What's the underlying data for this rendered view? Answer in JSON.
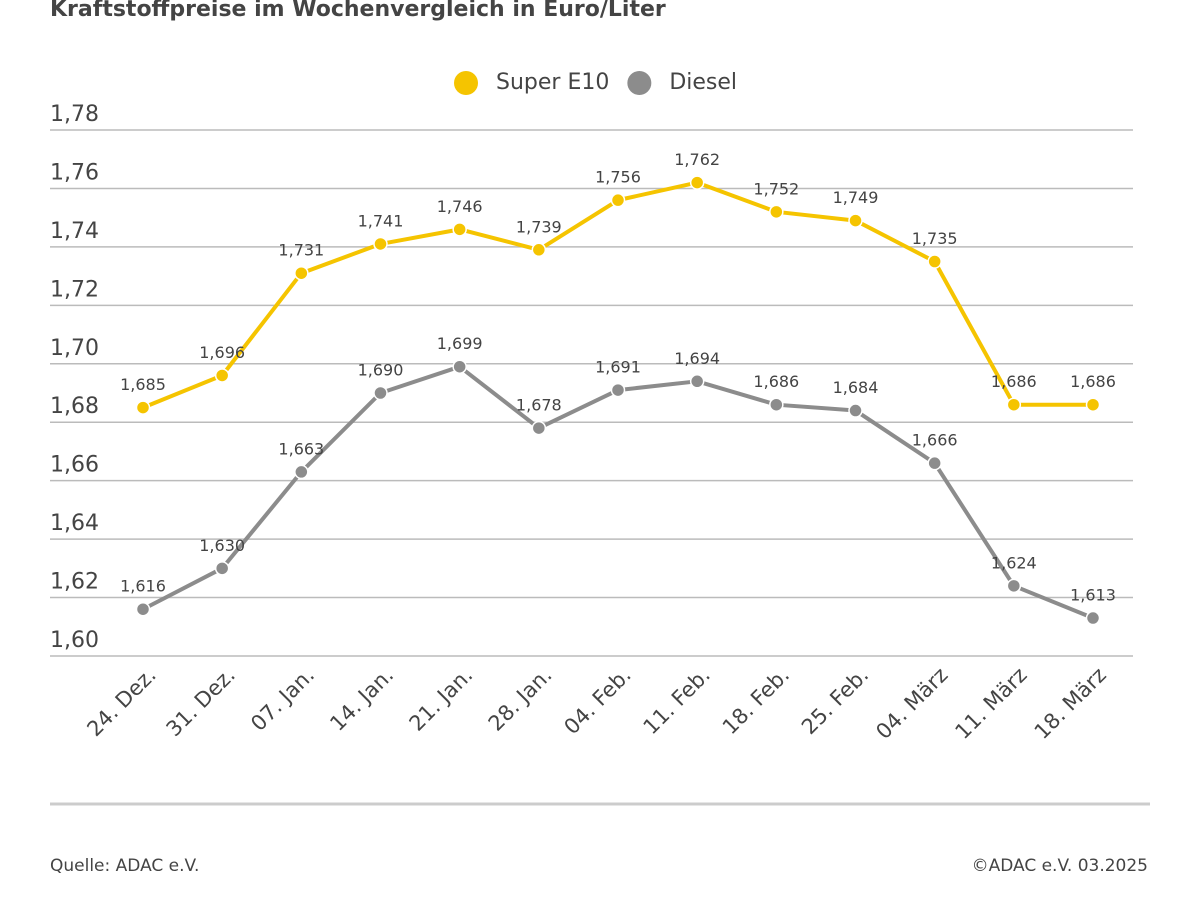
{
  "chart_data": {
    "type": "line",
    "title": "Kraftstoffpreise im Wochenvergleich in Euro/Liter",
    "categories": [
      "24. Dez.",
      "31. Dez.",
      "07. Jan.",
      "14. Jan.",
      "21. Jan.",
      "28. Jan.",
      "04. Feb.",
      "11. Feb.",
      "18. Feb.",
      "25. Feb.",
      "04. März",
      "11. März",
      "18. März"
    ],
    "series": [
      {
        "name": "Super E10",
        "color": "#f5c400",
        "values": [
          1.685,
          1.696,
          1.731,
          1.741,
          1.746,
          1.739,
          1.756,
          1.762,
          1.752,
          1.749,
          1.735,
          1.686,
          1.686
        ],
        "value_labels": [
          "1,685",
          "1,696",
          "1,731",
          "1,741",
          "1,746",
          "1,739",
          "1,756",
          "1,762",
          "1,752",
          "1,749",
          "1,735",
          "1,686",
          "1,686"
        ]
      },
      {
        "name": "Diesel",
        "color": "#8c8c8c",
        "values": [
          1.616,
          1.63,
          1.663,
          1.69,
          1.699,
          1.678,
          1.691,
          1.694,
          1.686,
          1.684,
          1.666,
          1.624,
          1.613
        ],
        "value_labels": [
          "1,616",
          "1,630",
          "1,663",
          "1,690",
          "1,699",
          "1,678",
          "1,691",
          "1,694",
          "1,686",
          "1,684",
          "1,666",
          "1,624",
          "1,613"
        ]
      }
    ],
    "ylim": [
      1.6,
      1.78
    ],
    "yticks": [
      {
        "value": 1.6,
        "label": "1,60"
      },
      {
        "value": 1.62,
        "label": "1,62"
      },
      {
        "value": 1.64,
        "label": "1,64"
      },
      {
        "value": 1.66,
        "label": "1,66"
      },
      {
        "value": 1.68,
        "label": "1,68"
      },
      {
        "value": 1.7,
        "label": "1,70"
      },
      {
        "value": 1.72,
        "label": "1,72"
      },
      {
        "value": 1.74,
        "label": "1,74"
      },
      {
        "value": 1.76,
        "label": "1,76"
      },
      {
        "value": 1.78,
        "label": "1,78"
      }
    ],
    "grid": true,
    "legend": "top",
    "source": "Quelle: ADAC e.V.",
    "copyright": "©ADAC e.V. 03.2025"
  }
}
